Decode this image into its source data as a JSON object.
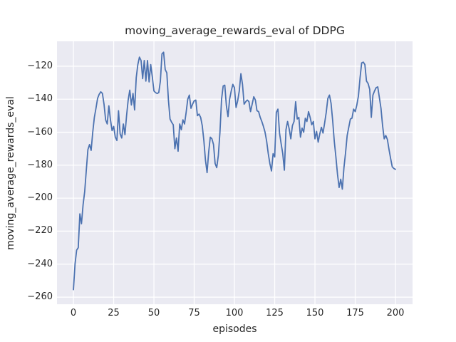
{
  "chart_data": {
    "type": "line",
    "title": "moving_average_rewards_eval of DDPG",
    "xlabel": "episodes",
    "ylabel": "moving_average_rewards_eval",
    "legend": null,
    "grid": true,
    "style": "seaborn-darkgrid",
    "colors": {
      "line": "#4C72B0",
      "plot_background": "#EAEAF2",
      "gridline": "#FFFFFF",
      "figure_background": "#FFFFFF",
      "text": "#262626"
    },
    "xlim": [
      -10.2,
      210.6
    ],
    "ylim": [
      -264.3,
      -104.9
    ],
    "x_ticks": [
      0,
      25,
      50,
      75,
      100,
      125,
      150,
      175,
      200
    ],
    "y_ticks": [
      -260,
      -240,
      -220,
      -200,
      -180,
      -160,
      -140,
      -120
    ],
    "x_start": 0,
    "x_step": 1,
    "series": [
      {
        "name": "moving_average_rewards_eval",
        "values": [
          -255.5,
          -240,
          -231.5,
          -230,
          -209.5,
          -215.5,
          -204,
          -196,
          -183,
          -170.5,
          -167.5,
          -171,
          -160,
          -151,
          -145.5,
          -139.5,
          -137,
          -135.5,
          -136.5,
          -143,
          -152.5,
          -155,
          -144,
          -152.5,
          -159,
          -156.5,
          -163,
          -165,
          -147,
          -161,
          -163.5,
          -155,
          -161.5,
          -150,
          -140.5,
          -134.5,
          -143.5,
          -136.5,
          -146.5,
          -127,
          -119,
          -114.5,
          -116.5,
          -127.5,
          -116.5,
          -129,
          -116.5,
          -129.5,
          -119,
          -126.5,
          -135,
          -136,
          -136.5,
          -136,
          -129,
          -112.5,
          -111.5,
          -122,
          -124,
          -140.5,
          -152,
          -154,
          -155.5,
          -170,
          -163.5,
          -171.5,
          -155,
          -158.5,
          -152.5,
          -155,
          -148,
          -140,
          -137.5,
          -145.5,
          -143,
          -141,
          -140.5,
          -150,
          -149,
          -151,
          -156,
          -165,
          -177,
          -184.5,
          -172,
          -163,
          -164,
          -167.5,
          -179,
          -181.5,
          -174,
          -160,
          -140,
          -132,
          -131.5,
          -144,
          -150.5,
          -140,
          -135,
          -131,
          -133,
          -145,
          -141,
          -135,
          -124.5,
          -131,
          -143,
          -141.5,
          -140.5,
          -141.5,
          -147.5,
          -143,
          -138.5,
          -140.5,
          -147,
          -147.5,
          -151,
          -153.5,
          -156.5,
          -160,
          -165.5,
          -173,
          -179,
          -183.5,
          -173,
          -175,
          -148,
          -146,
          -160.5,
          -167,
          -173,
          -183,
          -158.5,
          -153.5,
          -158,
          -164,
          -156,
          -153.5,
          -141.5,
          -152,
          -151,
          -163,
          -157.5,
          -160,
          -151.5,
          -153.5,
          -147.5,
          -151,
          -155.5,
          -153.5,
          -164,
          -159.5,
          -166,
          -161,
          -157,
          -160.5,
          -154.5,
          -148,
          -139.5,
          -137.5,
          -142.5,
          -153,
          -165.5,
          -175,
          -185.5,
          -193.5,
          -188.5,
          -194.5,
          -181.5,
          -172.5,
          -162,
          -157,
          -152,
          -151.5,
          -146,
          -147.5,
          -143.5,
          -138,
          -127,
          -118,
          -117.5,
          -119,
          -129,
          -130.5,
          -134,
          -151,
          -137.5,
          -135,
          -133,
          -132.5,
          -139,
          -145.5,
          -156,
          -164,
          -162,
          -164.5,
          -170.5,
          -176,
          -181,
          -182,
          -182.5
        ]
      }
    ]
  }
}
